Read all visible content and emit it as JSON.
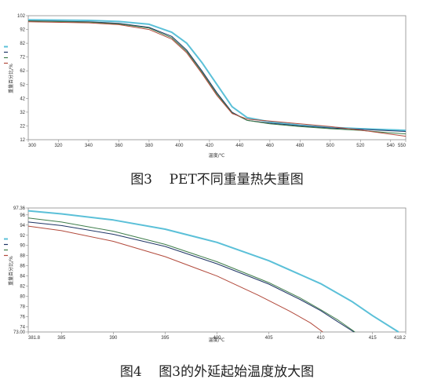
{
  "captions": {
    "fig3": "图3    PET不同重量热失重图",
    "fig4": "图4    图3的外延起始温度放大图"
  },
  "chart_data": [
    {
      "type": "line",
      "title": "",
      "xlabel": "温度/℃",
      "ylabel": "重量百分比/%",
      "xlim": [
        300,
        550
      ],
      "ylim": [
        12,
        102
      ],
      "x_ticks": [
        "300",
        "320",
        "340",
        "360",
        "380",
        "400",
        "420",
        "440",
        "460",
        "480",
        "500",
        "520",
        "540",
        "550"
      ],
      "x_tick_values": [
        300,
        320,
        340,
        360,
        380,
        400,
        420,
        440,
        460,
        480,
        500,
        520,
        540,
        550
      ],
      "y_ticks": [
        "102",
        "92",
        "82",
        "72",
        "62",
        "52",
        "42",
        "32",
        "22",
        "12"
      ],
      "y_tick_values": [
        102,
        92,
        82,
        72,
        62,
        52,
        42,
        32,
        22,
        12
      ],
      "grid": false,
      "legend_position": "left",
      "series": [
        {
          "color": "#5bc0d8",
          "points": [
            [
              300,
              99
            ],
            [
              340,
              98.6
            ],
            [
              360,
              97.8
            ],
            [
              380,
              95.8
            ],
            [
              395,
              90
            ],
            [
              405,
              82
            ],
            [
              415,
              68
            ],
            [
              425,
              52
            ],
            [
              435,
              36
            ],
            [
              445,
              28
            ],
            [
              460,
              25
            ],
            [
              480,
              22.5
            ],
            [
              500,
              21
            ],
            [
              520,
              20
            ],
            [
              540,
              19.2
            ],
            [
              550,
              18.8
            ]
          ]
        },
        {
          "color": "#1f3566",
          "points": [
            [
              300,
              98.3
            ],
            [
              340,
              97.6
            ],
            [
              360,
              96.5
            ],
            [
              380,
              93.5
            ],
            [
              395,
              87
            ],
            [
              405,
              77
            ],
            [
              415,
              62
            ],
            [
              425,
              46
            ],
            [
              435,
              32
            ],
            [
              445,
              26
            ],
            [
              460,
              24
            ],
            [
              480,
              22
            ],
            [
              500,
              20.5
            ],
            [
              520,
              19.5
            ],
            [
              540,
              18.5
            ],
            [
              550,
              18
            ]
          ]
        },
        {
          "color": "#3e7d4a",
          "points": [
            [
              300,
              98.1
            ],
            [
              340,
              97.3
            ],
            [
              360,
              96
            ],
            [
              380,
              93
            ],
            [
              395,
              86
            ],
            [
              405,
              76
            ],
            [
              415,
              61
            ],
            [
              425,
              45
            ],
            [
              435,
              31.5
            ],
            [
              445,
              26
            ],
            [
              460,
              23.5
            ],
            [
              480,
              21.5
            ],
            [
              500,
              20
            ],
            [
              520,
              18.8
            ],
            [
              540,
              17
            ],
            [
              550,
              16.2
            ]
          ]
        },
        {
          "color": "#b24a3c",
          "points": [
            [
              300,
              97.6
            ],
            [
              340,
              96.8
            ],
            [
              360,
              95.5
            ],
            [
              380,
              92
            ],
            [
              395,
              85
            ],
            [
              405,
              75
            ],
            [
              415,
              60
            ],
            [
              425,
              44
            ],
            [
              435,
              31
            ],
            [
              445,
              27
            ],
            [
              460,
              25.5
            ],
            [
              480,
              23.5
            ],
            [
              500,
              21.5
            ],
            [
              520,
              19
            ],
            [
              540,
              16
            ],
            [
              550,
              14.5
            ]
          ]
        }
      ]
    },
    {
      "type": "line",
      "title": "",
      "xlabel": "温度/℃",
      "ylabel": "重量百分比/%",
      "xlim": [
        381.8,
        418.2
      ],
      "ylim": [
        73,
        97.36
      ],
      "x_ticks": [
        "381.8",
        "385",
        "390",
        "395",
        "400",
        "405",
        "410",
        "415",
        "418.2"
      ],
      "x_tick_values": [
        381.8,
        385,
        390,
        395,
        400,
        405,
        410,
        415,
        418.2
      ],
      "y_ticks": [
        "97.36",
        "96",
        "94",
        "92",
        "90",
        "88",
        "86",
        "84",
        "82",
        "80",
        "78",
        "76",
        "74",
        "73.00"
      ],
      "y_tick_values": [
        97.36,
        96,
        94,
        92,
        90,
        88,
        86,
        84,
        82,
        80,
        78,
        76,
        74,
        73
      ],
      "grid": false,
      "legend_position": "left",
      "series": [
        {
          "color": "#5bc0d8",
          "points": [
            [
              381.8,
              96.8
            ],
            [
              385,
              96.2
            ],
            [
              390,
              95
            ],
            [
              395,
              93.2
            ],
            [
              400,
              90.6
            ],
            [
              405,
              87
            ],
            [
              410,
              82.5
            ],
            [
              413,
              79
            ],
            [
              415,
              76.2
            ],
            [
              417.5,
              73
            ]
          ]
        },
        {
          "color": "#1f3566",
          "points": [
            [
              381.8,
              94.6
            ],
            [
              385,
              93.9
            ],
            [
              390,
              92.2
            ],
            [
              395,
              89.8
            ],
            [
              400,
              86.4
            ],
            [
              405,
              82.4
            ],
            [
              408,
              79.4
            ],
            [
              410,
              77.2
            ],
            [
              411.5,
              75.2
            ],
            [
              413.2,
              73
            ]
          ]
        },
        {
          "color": "#3e7d4a",
          "points": [
            [
              381.8,
              95.4
            ],
            [
              385,
              94.6
            ],
            [
              390,
              92.8
            ],
            [
              395,
              90.2
            ],
            [
              400,
              86.8
            ],
            [
              405,
              82.7
            ],
            [
              408,
              79.7
            ],
            [
              410,
              77.4
            ],
            [
              411.7,
              75.3
            ],
            [
              413.3,
              73
            ]
          ]
        },
        {
          "color": "#b24a3c",
          "points": [
            [
              381.8,
              93.8
            ],
            [
              385,
              92.9
            ],
            [
              390,
              90.8
            ],
            [
              395,
              87.8
            ],
            [
              400,
              84
            ],
            [
              404,
              80.2
            ],
            [
              407,
              77.1
            ],
            [
              409,
              74.8
            ],
            [
              410.2,
              73
            ]
          ]
        }
      ]
    }
  ]
}
